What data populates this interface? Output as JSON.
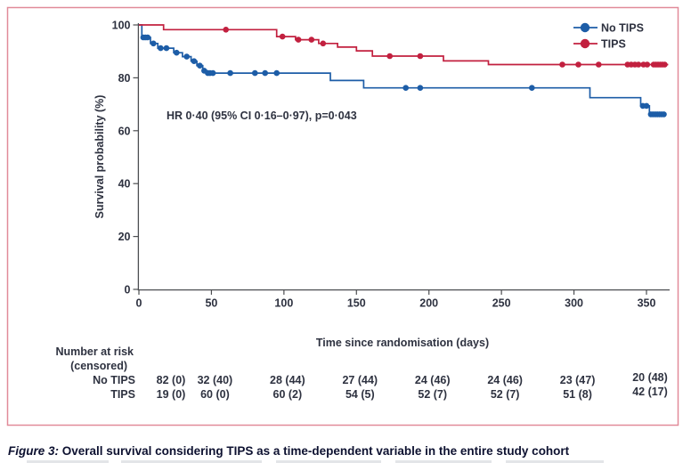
{
  "figure": {
    "caption_label": "Figure 3:",
    "caption_text": " Overall survival considering TIPS as a time-dependent variable in the entire study cohort"
  },
  "chart_data": {
    "type": "line",
    "subtype": "kaplan-meier-step-curves",
    "title": "",
    "xlabel": "Time since randomisation (days)",
    "ylabel": "Survival probability (%)",
    "xlim": [
      0,
      365
    ],
    "ylim": [
      0,
      100
    ],
    "xticks": [
      0,
      50,
      100,
      150,
      200,
      250,
      300,
      350
    ],
    "yticks": [
      0,
      20,
      40,
      60,
      80,
      100
    ],
    "grid": false,
    "legend_position": "top-right-inside",
    "annotation": "HR 0·40 (95% CI 0·16–0·97), p=0·043",
    "series": [
      {
        "name": "No TIPS",
        "color": "#1d5da7",
        "steps": [
          [
            0,
            100
          ],
          [
            2,
            95.3
          ],
          [
            8,
            93.0
          ],
          [
            13,
            91.2
          ],
          [
            24,
            89.5
          ],
          [
            30,
            88.0
          ],
          [
            36,
            86.3
          ],
          [
            40,
            84.6
          ],
          [
            44,
            82.7
          ],
          [
            47,
            81.8
          ],
          [
            132,
            79.0
          ],
          [
            155,
            76.2
          ],
          [
            311,
            72.5
          ],
          [
            346,
            69.4
          ],
          [
            352,
            66.2
          ],
          [
            363,
            66.2
          ]
        ],
        "censors": [
          [
            3,
            95.3
          ],
          [
            4.5,
            95.3
          ],
          [
            6,
            95.3
          ],
          [
            10,
            93.0
          ],
          [
            15,
            91.2
          ],
          [
            19,
            91.2
          ],
          [
            26,
            89.5
          ],
          [
            33,
            88.0
          ],
          [
            38,
            86.3
          ],
          [
            42,
            84.6
          ],
          [
            45,
            82.7
          ],
          [
            47.5,
            81.8
          ],
          [
            49,
            81.8
          ],
          [
            51,
            81.8
          ],
          [
            63,
            81.8
          ],
          [
            80,
            81.8
          ],
          [
            87,
            81.8
          ],
          [
            95,
            81.8
          ],
          [
            184,
            76.2
          ],
          [
            194,
            76.2
          ],
          [
            271,
            76.2
          ],
          [
            347.5,
            69.4
          ],
          [
            350,
            69.4
          ],
          [
            353,
            66.2
          ],
          [
            354.5,
            66.2
          ],
          [
            356,
            66.2
          ],
          [
            357.5,
            66.2
          ],
          [
            359,
            66.2
          ],
          [
            360.5,
            66.2
          ],
          [
            362,
            66.2
          ]
        ]
      },
      {
        "name": "TIPS",
        "color": "#c2203f",
        "steps": [
          [
            0,
            100
          ],
          [
            17,
            98.2
          ],
          [
            95,
            95.6
          ],
          [
            108,
            94.4
          ],
          [
            124,
            93.0
          ],
          [
            137,
            91.6
          ],
          [
            150,
            90.2
          ],
          [
            161,
            88.2
          ],
          [
            210,
            86.4
          ],
          [
            241,
            85.0
          ],
          [
            365,
            85.0
          ]
        ],
        "censors": [
          [
            60,
            98.2
          ],
          [
            99,
            95.6
          ],
          [
            110,
            94.4
          ],
          [
            119,
            94.4
          ],
          [
            127,
            93.0
          ],
          [
            173,
            88.2
          ],
          [
            194,
            88.2
          ],
          [
            292,
            85.0
          ],
          [
            303,
            85.0
          ],
          [
            317,
            85.0
          ],
          [
            337,
            85.0
          ],
          [
            339.5,
            85.0
          ],
          [
            342,
            85.0
          ],
          [
            344.5,
            85.0
          ],
          [
            348,
            85.0
          ],
          [
            350.5,
            85.0
          ],
          [
            355,
            85.0
          ],
          [
            356.5,
            85.0
          ],
          [
            358,
            85.0
          ],
          [
            359.5,
            85.0
          ],
          [
            361,
            85.0
          ],
          [
            362.5,
            85.0
          ]
        ]
      }
    ]
  },
  "risk_table": {
    "title_line1": "Number at risk",
    "title_line2": "(censored)",
    "times": [
      0,
      50,
      100,
      150,
      200,
      250,
      300,
      350
    ],
    "rows": [
      {
        "label": "No TIPS",
        "values": [
          "82 (0)",
          "32 (40)",
          "28 (44)",
          "27 (44)",
          "24 (46)",
          "24 (46)",
          "23 (47)",
          "20 (48)"
        ]
      },
      {
        "label": "TIPS",
        "values": [
          "19 (0)",
          "60 (0)",
          "60 (2)",
          "54 (5)",
          "52 (7)",
          "52 (7)",
          "51 (8)",
          "42 (17)"
        ]
      }
    ]
  },
  "colors": {
    "no_tips_blue": "#1d5da7",
    "tips_red": "#c2203f",
    "figure_border_pink": "#e18b99",
    "axis_gray": "#4d4f52",
    "text_navy": "#2e3240"
  }
}
